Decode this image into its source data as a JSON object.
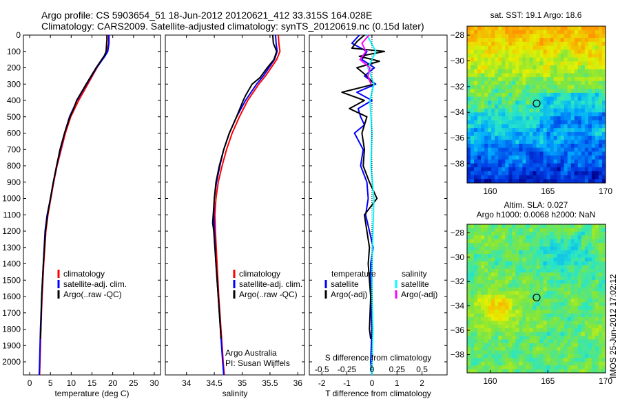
{
  "header": {
    "line1": "Argo profile: CS 5903654_51 18-Jun-2012 20120621_412 33.315S 164.028E",
    "line2": "Climatology: CARS2009. Satellite-adjusted climatology: synTS_20120619.nc (0.15d later)"
  },
  "colors": {
    "climatology": "#ff0000",
    "satellite": "#0000ff",
    "argo": "#000000",
    "s_satellite": "#00ffff",
    "s_argo": "#ff00ff"
  },
  "chart_data": [
    {
      "type": "line",
      "name": "temperature-profile",
      "xlabel": "temperature (deg C)",
      "xticks": [
        0,
        5,
        10,
        15,
        20,
        25,
        30
      ],
      "xlim": [
        -1.5,
        31.5
      ],
      "ylim": [
        0,
        2080
      ],
      "yticks": [
        0,
        100,
        200,
        300,
        400,
        500,
        600,
        700,
        800,
        900,
        1000,
        1100,
        1200,
        1300,
        1400,
        1500,
        1600,
        1700,
        1800,
        1900,
        2000
      ],
      "legend": [
        "climatology",
        "satellite-adj. clim.",
        "Argo(..raw -QC)"
      ],
      "series": [
        {
          "name": "climatology",
          "color": "#ff0000",
          "depth": [
            0,
            50,
            100,
            130,
            200,
            300,
            400,
            500,
            600,
            700,
            800,
            900,
            1000,
            1100,
            1200,
            1400,
            1600,
            1800,
            2000,
            2080
          ],
          "values": [
            19.0,
            19.0,
            18.6,
            18.0,
            16.2,
            14.0,
            11.8,
            9.9,
            8.6,
            7.6,
            6.6,
            5.8,
            5.1,
            4.4,
            3.9,
            3.4,
            3.0,
            2.7,
            2.5,
            2.4
          ]
        },
        {
          "name": "satellite-adj. clim.",
          "color": "#0000ff",
          "depth": [
            0,
            50,
            100,
            130,
            200,
            300,
            400,
            500,
            600,
            700,
            800,
            900,
            1000,
            1100,
            1200,
            1400,
            1600,
            1800,
            2000,
            2080
          ],
          "values": [
            19.1,
            19.1,
            18.8,
            18.1,
            16.1,
            13.7,
            11.4,
            9.6,
            8.4,
            7.4,
            6.5,
            5.7,
            5.0,
            4.2,
            3.7,
            3.3,
            2.9,
            2.6,
            2.4,
            2.3
          ]
        },
        {
          "name": "Argo(..raw -QC)",
          "color": "#000000",
          "depth": [
            0,
            30,
            60,
            100,
            125,
            200,
            300,
            400,
            450,
            500,
            600,
            700,
            800,
            900,
            1000,
            1100,
            1200,
            1400,
            1600,
            1800,
            1860
          ],
          "values": [
            18.6,
            18.6,
            18.5,
            18.4,
            18.0,
            16.0,
            13.6,
            11.3,
            10.6,
            9.7,
            8.4,
            7.3,
            6.5,
            5.7,
            5.0,
            4.3,
            3.8,
            3.3,
            2.9,
            2.7,
            2.6
          ]
        }
      ]
    },
    {
      "type": "line",
      "name": "salinity-profile",
      "xlabel": "salinity",
      "xticks": [
        34,
        34.5,
        35,
        35.5,
        36
      ],
      "xlim": [
        33.62,
        36.12
      ],
      "ylim": [
        0,
        2080
      ],
      "legend": [
        "climatology",
        "satellite-adj. clim.",
        "Argo(..raw -QC)"
      ],
      "series": [
        {
          "name": "climatology",
          "color": "#ff0000",
          "depth": [
            0,
            50,
            100,
            150,
            200,
            250,
            300,
            400,
            500,
            600,
            700,
            800,
            900,
            1000,
            1100,
            1200,
            1400,
            1600,
            1800,
            2000,
            2080
          ],
          "values": [
            35.65,
            35.66,
            35.68,
            35.62,
            35.52,
            35.42,
            35.3,
            35.1,
            34.95,
            34.82,
            34.72,
            34.64,
            34.57,
            34.53,
            34.51,
            34.52,
            34.55,
            34.58,
            34.62,
            34.66,
            34.68
          ]
        },
        {
          "name": "satellite-adj. clim.",
          "color": "#0000ff",
          "depth": [
            0,
            50,
            100,
            150,
            200,
            250,
            300,
            400,
            500,
            600,
            700,
            800,
            900,
            1000,
            1100,
            1200,
            1400,
            1600,
            1800,
            2000,
            2080
          ],
          "values": [
            35.6,
            35.61,
            35.63,
            35.58,
            35.48,
            35.38,
            35.26,
            35.06,
            34.9,
            34.77,
            34.67,
            34.6,
            34.54,
            34.5,
            34.49,
            34.5,
            34.53,
            34.57,
            34.61,
            34.65,
            34.67
          ]
        },
        {
          "name": "Argo(..raw -QC)",
          "color": "#000000",
          "depth": [
            0,
            50,
            100,
            150,
            200,
            260,
            300,
            370,
            400,
            500,
            600,
            700,
            800,
            900,
            1000,
            1100,
            1150,
            1200,
            1400,
            1600,
            1800,
            1860
          ],
          "values": [
            35.55,
            35.56,
            35.62,
            35.57,
            35.45,
            35.32,
            35.18,
            35.06,
            35.02,
            34.9,
            34.77,
            34.67,
            34.59,
            34.53,
            34.5,
            34.48,
            34.47,
            34.49,
            34.53,
            34.57,
            34.61,
            34.62
          ]
        }
      ],
      "annotations": [
        "Argo Australia",
        "PI: Susan Wijffels"
      ]
    },
    {
      "type": "line",
      "name": "difference-profile",
      "xlabel": "T difference from climatology",
      "xticks": [
        -2,
        -1,
        0,
        1,
        2
      ],
      "xlim": [
        -2.5,
        3.0
      ],
      "secondary_xlabel": "S difference from climatology",
      "secondary_xticks": [
        -0.5,
        -0.25,
        0,
        0.25,
        0.5
      ],
      "ylim": [
        0,
        2080
      ],
      "legend_left_title": "temperature",
      "legend_right_title": "salinity",
      "legend": [
        "satellite",
        "Argo(-adj)",
        "satellite",
        "Argo(-adj)"
      ],
      "series": [
        {
          "name": "T satellite",
          "color": "#0000ff",
          "depth": [
            0,
            50,
            100,
            150,
            200,
            250,
            300,
            350,
            400,
            450,
            500,
            550,
            600,
            700,
            800,
            900,
            1000,
            1100,
            1200,
            1300,
            1400,
            1600,
            1800,
            2000,
            2080
          ],
          "values": [
            -0.5,
            -0.8,
            -0.2,
            -0.4,
            0.1,
            -0.3,
            0.15,
            -0.6,
            0.0,
            -0.55,
            -0.45,
            -0.3,
            -0.7,
            -0.35,
            -0.45,
            -0.2,
            -0.15,
            -0.25,
            -0.1,
            0.05,
            -0.05,
            -0.05,
            0.0,
            -0.05,
            0.0
          ]
        },
        {
          "name": "T Argo(-adj)",
          "color": "#000000",
          "depth": [
            0,
            40,
            80,
            100,
            130,
            160,
            200,
            250,
            300,
            350,
            400,
            450,
            500,
            600,
            700,
            800,
            900,
            1000,
            1100,
            1200,
            1300,
            1400,
            1600,
            1800,
            1860
          ],
          "values": [
            -0.3,
            -0.6,
            -0.8,
            0.5,
            -0.5,
            0.3,
            -0.6,
            -0.2,
            0.1,
            -1.2,
            -0.3,
            -0.9,
            -0.2,
            -0.4,
            -0.3,
            -0.35,
            -0.1,
            0.2,
            -0.3,
            -0.2,
            -0.1,
            -0.15,
            -0.05,
            -0.1,
            -0.05
          ]
        },
        {
          "name": "S satellite",
          "color": "#00ffff",
          "depth": [
            0,
            100,
            200,
            300,
            400,
            600,
            800,
            1000,
            1200,
            1400,
            1600,
            1800,
            2000,
            2080
          ],
          "values": [
            -0.05,
            0.04,
            -0.04,
            0.02,
            -0.02,
            0.0,
            -0.01,
            0.02,
            0.01,
            0.0,
            0.0,
            0.01,
            0.0,
            0.0
          ]
        },
        {
          "name": "S Argo(-adj)",
          "color": "#ff00ff",
          "depth": [
            0,
            50,
            100,
            150,
            200,
            250,
            300
          ],
          "values": [
            -0.03,
            -0.1,
            -0.06,
            -0.12,
            -0.02,
            -0.04,
            -0.01
          ]
        }
      ]
    },
    {
      "type": "heatmap",
      "name": "sst-map",
      "title": "sat. SST: 19.1  Argo: 18.6",
      "xticks": [
        160,
        165,
        170
      ],
      "yticks": [
        -28,
        -30,
        -32,
        -34,
        -36,
        -38
      ],
      "xlim": [
        158,
        170
      ],
      "ylim": [
        -39.5,
        -27.3
      ],
      "float_position": [
        164.028,
        -33.315
      ]
    },
    {
      "type": "heatmap",
      "name": "sla-map",
      "title": "Altim. SLA: 0.027",
      "subtitle": "Argo h1000: 0.0068 h2000: NaN",
      "xticks": [
        160,
        165,
        170
      ],
      "yticks": [
        -28,
        -30,
        -32,
        -34,
        -36,
        -38
      ],
      "xlim": [
        158,
        170
      ],
      "ylim": [
        -39.5,
        -27.3
      ],
      "float_position": [
        164.028,
        -33.315
      ]
    }
  ],
  "footer": {
    "imos_stamp": "IMOS 25-Jun-2012 17:02:12"
  }
}
